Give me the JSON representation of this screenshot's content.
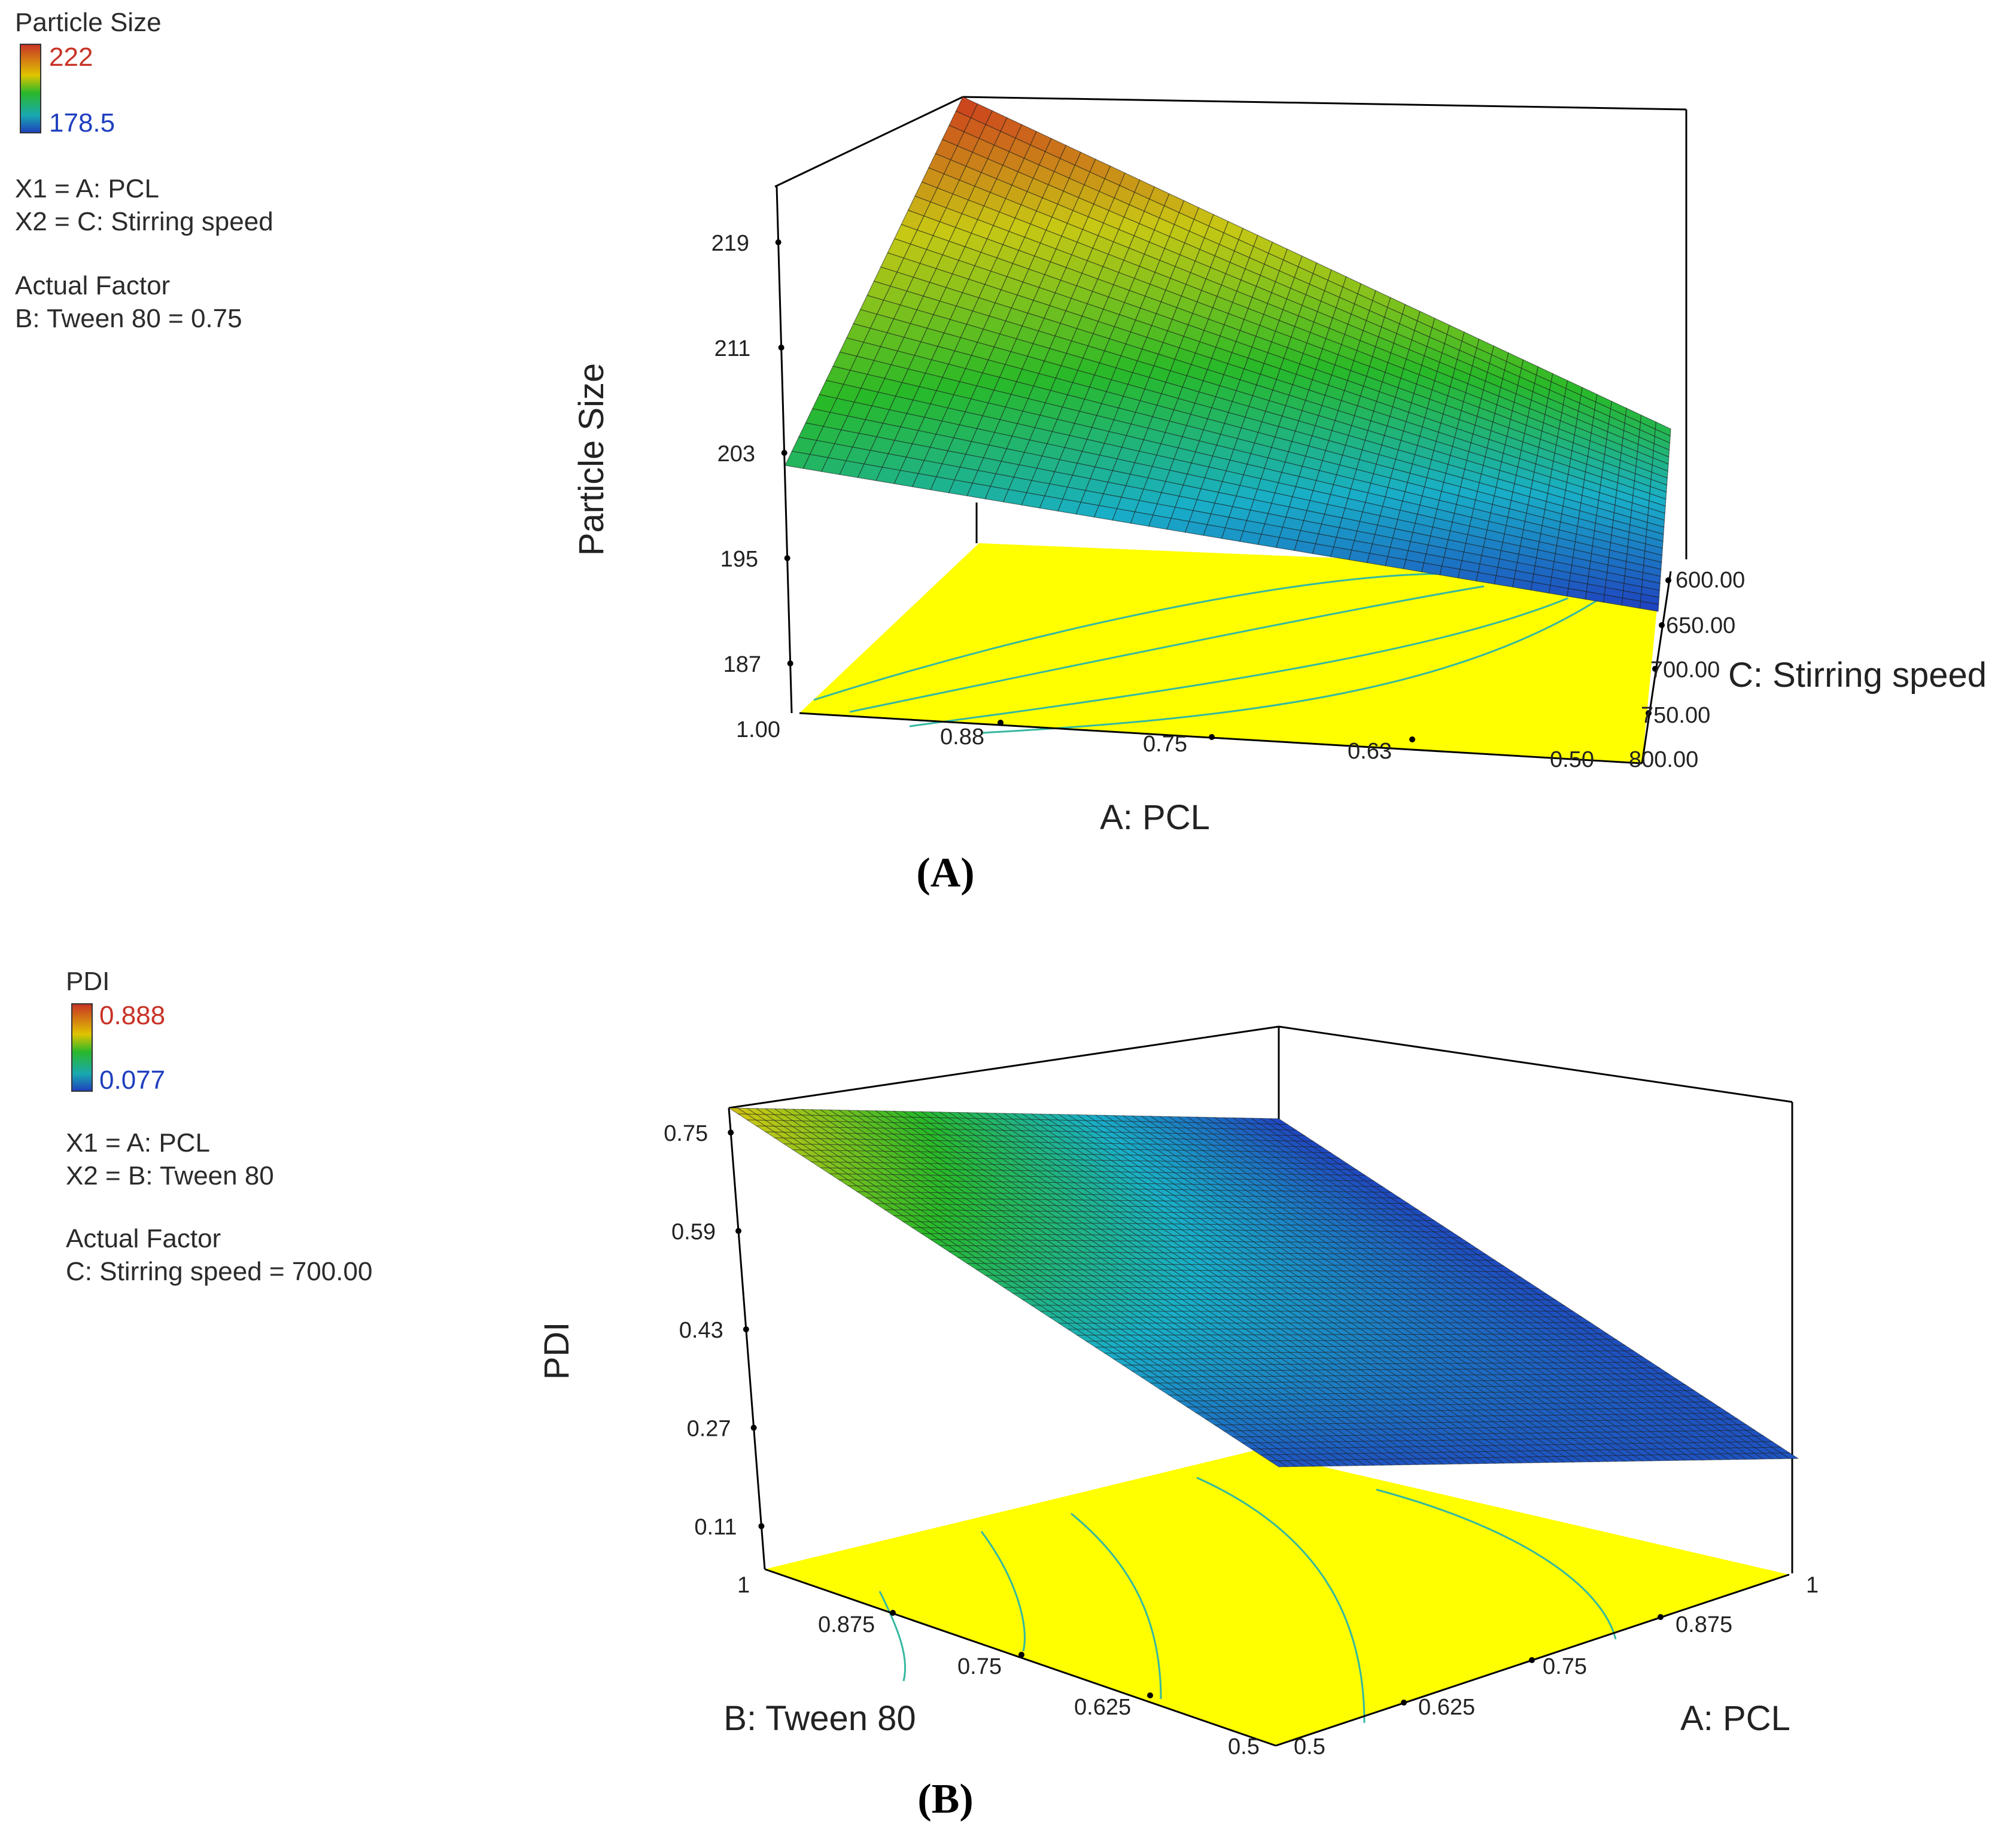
{
  "colors": {
    "high": "#c83226",
    "low": "#1f3fbf",
    "floor": "#ffff00",
    "contour": "#35b8a0",
    "frame": "#000000",
    "text": "#222222"
  },
  "chart_data": [
    {
      "type": "surface3d",
      "panel_label": "(A)",
      "legend": {
        "response": "Particle Size",
        "max_label": "222",
        "min_label": "178.5",
        "x1_line": "X1 = A: PCL",
        "x2_line": "X2 = C: Stirring speed",
        "actual_factor_title": "Actual Factor",
        "actual_factor_value": "B: Tween 80 = 0.75"
      },
      "zlabel": "Particle Size",
      "xlabel": "A: PCL",
      "ylabel": "C: Stirring speed",
      "z_ticks": [
        "219",
        "211",
        "203",
        "195",
        "187"
      ],
      "z_tick_values": [
        219,
        211,
        203,
        195,
        187
      ],
      "x_ticks": [
        "1.00",
        "0.88",
        "0.75",
        "0.63",
        "0.50"
      ],
      "y_ticks": [
        "600.00",
        "650.00",
        "700.00",
        "750.00",
        "800.00"
      ],
      "zlim": [
        183,
        223
      ],
      "surface_corners": {
        "pcl_1.00_speed_600": 222,
        "pcl_1.00_speed_800": 198.5,
        "pcl_0.50_speed_600": 200,
        "pcl_0.50_speed_800": 178.5
      },
      "grid": true
    },
    {
      "type": "surface3d",
      "panel_label": "(B)",
      "legend": {
        "response": "PDI",
        "max_label": "0.888",
        "min_label": "0.077",
        "x1_line": "X1 = A: PCL",
        "x2_line": "X2 = B: Tween 80",
        "actual_factor_title": "Actual Factor",
        "actual_factor_value": "C: Stirring speed = 700.00"
      },
      "zlabel": "PDI",
      "xlabel": "A: PCL",
      "ylabel": "B: Tween 80",
      "z_ticks": [
        "0.75",
        "0.59",
        "0.43",
        "0.27",
        "0.11"
      ],
      "z_tick_values": [
        0.75,
        0.59,
        0.43,
        0.27,
        0.11
      ],
      "b_ticks": [
        "1",
        "0.875",
        "0.75",
        "0.625",
        "0.5"
      ],
      "a_ticks": [
        "0.5",
        "0.625",
        "0.75",
        "0.875",
        "1"
      ],
      "zlim": [
        0.04,
        0.79
      ],
      "surface_corners": {
        "pcl_0.5_tween_1": 0.75,
        "pcl_0.5_tween_0.5": 0.12,
        "pcl_1_tween_0.5": 0.12,
        "pcl_1_tween_1": 0.09
      },
      "grid": true
    }
  ]
}
